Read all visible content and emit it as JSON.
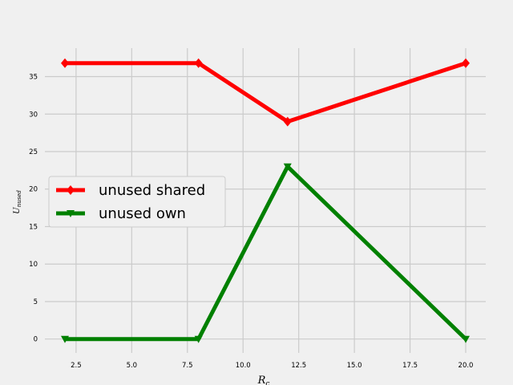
{
  "chart_data": {
    "type": "line",
    "title": "",
    "xlabel": {
      "base": "R",
      "sub": "c"
    },
    "ylabel": {
      "base": "U",
      "sub": "nused"
    },
    "xlim": [
      1.1,
      20.9
    ],
    "ylim": [
      -1.85,
      38.8
    ],
    "xticks": [
      2.5,
      5.0,
      7.5,
      10.0,
      12.5,
      15.0,
      17.5,
      20.0
    ],
    "xtick_labels": [
      "2.5",
      "5.0",
      "7.5",
      "10.0",
      "12.5",
      "15.0",
      "17.5",
      "20.0"
    ],
    "yticks": [
      0,
      5,
      10,
      15,
      20,
      25,
      30,
      35
    ],
    "ytick_labels": [
      "0",
      "5",
      "10",
      "15",
      "20",
      "25",
      "30",
      "35"
    ],
    "grid": true,
    "legend_position": "center-left",
    "x": [
      2,
      8,
      12,
      20
    ],
    "series": [
      {
        "name": "unused shared",
        "color": "#ff0000",
        "marker": "diamond",
        "values": [
          36.8,
          36.8,
          29.0,
          36.8
        ]
      },
      {
        "name": "unused own",
        "color": "#008000",
        "marker": "triangle-down",
        "values": [
          0,
          0,
          23.0,
          0
        ]
      }
    ]
  }
}
